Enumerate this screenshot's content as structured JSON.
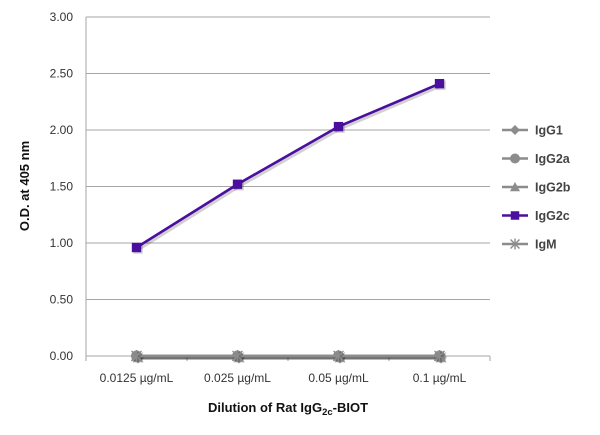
{
  "chart_data": {
    "type": "line",
    "title": "",
    "xlabel": "Dilution of Rat IgG2c-BIOT",
    "xlabel_parts": {
      "before": "Dilution of Rat IgG",
      "sub": "2c",
      "after": "-BIOT"
    },
    "ylabel": "O.D. at 405 nm",
    "categories": [
      "0.0125 µg/mL",
      "0.025 µg/mL",
      "0.05 µg/mL",
      "0.1 µg/mL"
    ],
    "ylim": [
      0,
      3
    ],
    "yticks": [
      "0.00",
      "0.50",
      "1.00",
      "1.50",
      "2.00",
      "2.50",
      "3.00"
    ],
    "grid": true,
    "legend_position": "right",
    "series": [
      {
        "name": "IgG1",
        "values": [
          0,
          0,
          0,
          0
        ],
        "color": "#8c8c8c",
        "marker": "diamond"
      },
      {
        "name": "IgG2a",
        "values": [
          0,
          0,
          0,
          0
        ],
        "color": "#8c8c8c",
        "marker": "circle"
      },
      {
        "name": "IgG2b",
        "values": [
          0,
          0,
          0,
          0
        ],
        "color": "#8c8c8c",
        "marker": "triangle"
      },
      {
        "name": "IgG2c",
        "values": [
          0.96,
          1.52,
          2.03,
          2.41
        ],
        "color": "#4b0fa0",
        "marker": "square"
      },
      {
        "name": "IgM",
        "values": [
          0,
          0,
          0,
          0
        ],
        "color": "#8c8c8c",
        "marker": "asterisk"
      }
    ]
  }
}
